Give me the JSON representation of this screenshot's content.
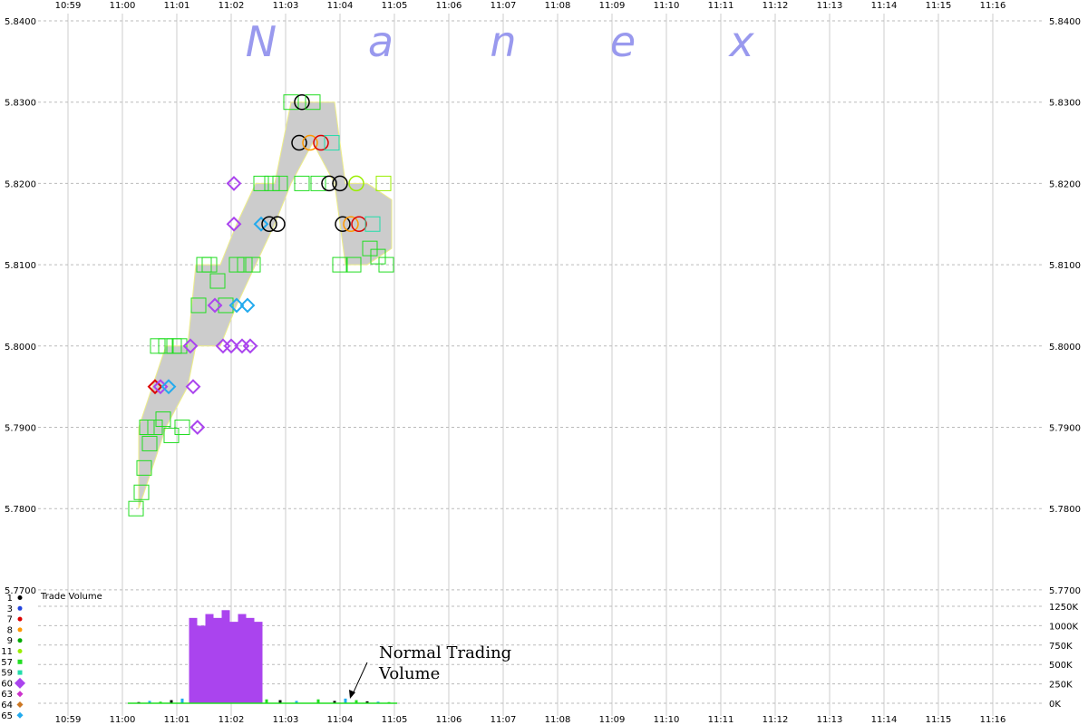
{
  "chart_data": {
    "type": "scatter",
    "watermark": [
      "N",
      "a",
      "n",
      "e",
      "x"
    ],
    "time_ticks": [
      "10:59",
      "11:00",
      "11:01",
      "11:02",
      "11:03",
      "11:04",
      "11:05",
      "11:06",
      "11:07",
      "11:08",
      "11:09",
      "11:10",
      "11:11",
      "11:12",
      "11:13",
      "11:14",
      "11:15",
      "11:16"
    ],
    "price_ticks": [
      "5.8400",
      "5.8300",
      "5.8200",
      "5.8100",
      "5.8000",
      "5.7900",
      "5.7800",
      "5.7700"
    ],
    "price_ylim": [
      5.77,
      5.84
    ],
    "xlim_minutes": [
      -1,
      16.3
    ],
    "volume_label": "Trade Volume",
    "volume_ticks": [
      "1250K",
      "1000K",
      "750K",
      "500K",
      "250K",
      "0K"
    ],
    "volume_ylim": [
      0,
      1250000
    ],
    "annotation": [
      "Normal Trading",
      "Volume"
    ],
    "legend": [
      {
        "code": "1",
        "color": "#000000",
        "shape": "dot"
      },
      {
        "code": "3",
        "color": "#2244dd",
        "shape": "dot"
      },
      {
        "code": "7",
        "color": "#dd0000",
        "shape": "dot"
      },
      {
        "code": "8",
        "color": "#ff9900",
        "shape": "dot"
      },
      {
        "code": "9",
        "color": "#00aa00",
        "shape": "dot"
      },
      {
        "code": "11",
        "color": "#99ee00",
        "shape": "dot"
      },
      {
        "code": "57",
        "color": "#22dd22",
        "shape": "square"
      },
      {
        "code": "59",
        "color": "#22ddaa",
        "shape": "square"
      },
      {
        "code": "60",
        "color": "#aa44ee",
        "shape": "diamond"
      },
      {
        "code": "63",
        "color": "#cc33cc",
        "shape": "diamond"
      },
      {
        "code": "64",
        "color": "#cc7722",
        "shape": "diamond"
      },
      {
        "code": "65",
        "color": "#22aaee",
        "shape": "diamond"
      }
    ],
    "price_band": [
      {
        "t": 0.3,
        "low": 5.78,
        "high": 5.79
      },
      {
        "t": 0.55,
        "low": 5.785,
        "high": 5.795
      },
      {
        "t": 0.8,
        "low": 5.79,
        "high": 5.8
      },
      {
        "t": 1.2,
        "low": 5.795,
        "high": 5.8
      },
      {
        "t": 1.35,
        "low": 5.8,
        "high": 5.81
      },
      {
        "t": 1.8,
        "low": 5.8,
        "high": 5.81
      },
      {
        "t": 2.1,
        "low": 5.805,
        "high": 5.815
      },
      {
        "t": 2.45,
        "low": 5.81,
        "high": 5.82
      },
      {
        "t": 2.8,
        "low": 5.815,
        "high": 5.82
      },
      {
        "t": 3.1,
        "low": 5.82,
        "high": 5.83
      },
      {
        "t": 3.5,
        "low": 5.825,
        "high": 5.83
      },
      {
        "t": 3.9,
        "low": 5.82,
        "high": 5.83
      },
      {
        "t": 4.1,
        "low": 5.81,
        "high": 5.82
      },
      {
        "t": 4.5,
        "low": 5.81,
        "high": 5.82
      },
      {
        "t": 4.95,
        "low": 5.812,
        "high": 5.818
      }
    ],
    "trades": [
      {
        "t": 0.25,
        "p": 5.78,
        "s": "square",
        "c": "#22dd22"
      },
      {
        "t": 0.35,
        "p": 5.782,
        "s": "square",
        "c": "#22dd22"
      },
      {
        "t": 0.4,
        "p": 5.785,
        "s": "square",
        "c": "#22dd22"
      },
      {
        "t": 0.5,
        "p": 5.788,
        "s": "square",
        "c": "#22dd22"
      },
      {
        "t": 0.45,
        "p": 5.79,
        "s": "square",
        "c": "#22dd22"
      },
      {
        "t": 0.6,
        "p": 5.79,
        "s": "square",
        "c": "#22dd22"
      },
      {
        "t": 0.75,
        "p": 5.791,
        "s": "square",
        "c": "#22dd22"
      },
      {
        "t": 0.9,
        "p": 5.789,
        "s": "square",
        "c": "#22dd22"
      },
      {
        "t": 1.1,
        "p": 5.79,
        "s": "square",
        "c": "#22dd22"
      },
      {
        "t": 0.65,
        "p": 5.8,
        "s": "square",
        "c": "#22dd22"
      },
      {
        "t": 0.8,
        "p": 5.8,
        "s": "square",
        "c": "#22dd22"
      },
      {
        "t": 0.95,
        "p": 5.8,
        "s": "square",
        "c": "#22dd22"
      },
      {
        "t": 1.05,
        "p": 5.8,
        "s": "square",
        "c": "#22dd22"
      },
      {
        "t": 0.6,
        "p": 5.795,
        "s": "diamond",
        "c": "#dd0000"
      },
      {
        "t": 0.7,
        "p": 5.795,
        "s": "diamond",
        "c": "#aa44ee"
      },
      {
        "t": 0.85,
        "p": 5.795,
        "s": "diamond",
        "c": "#22aaee"
      },
      {
        "t": 1.3,
        "p": 5.795,
        "s": "diamond",
        "c": "#aa44ee"
      },
      {
        "t": 1.38,
        "p": 5.79,
        "s": "diamond",
        "c": "#aa44ee"
      },
      {
        "t": 1.25,
        "p": 5.8,
        "s": "diamond",
        "c": "#aa44ee"
      },
      {
        "t": 1.4,
        "p": 5.805,
        "s": "square",
        "c": "#22dd22"
      },
      {
        "t": 1.5,
        "p": 5.81,
        "s": "square",
        "c": "#22dd22"
      },
      {
        "t": 1.6,
        "p": 5.81,
        "s": "square",
        "c": "#22dd22"
      },
      {
        "t": 1.75,
        "p": 5.808,
        "s": "square",
        "c": "#22dd22"
      },
      {
        "t": 1.9,
        "p": 5.805,
        "s": "square",
        "c": "#22dd22"
      },
      {
        "t": 1.7,
        "p": 5.805,
        "s": "diamond",
        "c": "#aa44ee"
      },
      {
        "t": 1.85,
        "p": 5.8,
        "s": "diamond",
        "c": "#aa44ee"
      },
      {
        "t": 2.0,
        "p": 5.8,
        "s": "diamond",
        "c": "#aa44ee"
      },
      {
        "t": 2.2,
        "p": 5.8,
        "s": "diamond",
        "c": "#aa44ee"
      },
      {
        "t": 2.35,
        "p": 5.8,
        "s": "diamond",
        "c": "#aa44ee"
      },
      {
        "t": 2.1,
        "p": 5.805,
        "s": "diamond",
        "c": "#22aaee"
      },
      {
        "t": 2.3,
        "p": 5.805,
        "s": "diamond",
        "c": "#22aaee"
      },
      {
        "t": 2.1,
        "p": 5.81,
        "s": "square",
        "c": "#22dd22"
      },
      {
        "t": 2.25,
        "p": 5.81,
        "s": "square",
        "c": "#22dd22"
      },
      {
        "t": 2.4,
        "p": 5.81,
        "s": "square",
        "c": "#22dd22"
      },
      {
        "t": 2.05,
        "p": 5.815,
        "s": "diamond",
        "c": "#aa44ee"
      },
      {
        "t": 2.05,
        "p": 5.82,
        "s": "diamond",
        "c": "#aa44ee"
      },
      {
        "t": 2.55,
        "p": 5.815,
        "s": "diamond",
        "c": "#22aaee"
      },
      {
        "t": 2.7,
        "p": 5.815,
        "s": "circle",
        "c": "#000000"
      },
      {
        "t": 2.85,
        "p": 5.815,
        "s": "circle",
        "c": "#000000"
      },
      {
        "t": 2.55,
        "p": 5.82,
        "s": "square",
        "c": "#22dd22"
      },
      {
        "t": 2.75,
        "p": 5.82,
        "s": "square",
        "c": "#22dd22"
      },
      {
        "t": 2.9,
        "p": 5.82,
        "s": "square",
        "c": "#22dd22"
      },
      {
        "t": 3.1,
        "p": 5.83,
        "s": "square",
        "c": "#22dd22"
      },
      {
        "t": 3.3,
        "p": 5.83,
        "s": "circle",
        "c": "#000000"
      },
      {
        "t": 3.5,
        "p": 5.83,
        "s": "square",
        "c": "#22dd22"
      },
      {
        "t": 3.25,
        "p": 5.825,
        "s": "circle",
        "c": "#000000"
      },
      {
        "t": 3.45,
        "p": 5.825,
        "s": "circle",
        "c": "#ff9900"
      },
      {
        "t": 3.65,
        "p": 5.825,
        "s": "circle",
        "c": "#dd0000"
      },
      {
        "t": 3.85,
        "p": 5.825,
        "s": "square",
        "c": "#22ddaa"
      },
      {
        "t": 3.3,
        "p": 5.82,
        "s": "square",
        "c": "#22dd22"
      },
      {
        "t": 3.6,
        "p": 5.82,
        "s": "square",
        "c": "#22dd22"
      },
      {
        "t": 3.8,
        "p": 5.82,
        "s": "circle",
        "c": "#000000"
      },
      {
        "t": 4.0,
        "p": 5.82,
        "s": "circle",
        "c": "#000000"
      },
      {
        "t": 4.3,
        "p": 5.82,
        "s": "circle",
        "c": "#99ee00"
      },
      {
        "t": 4.05,
        "p": 5.815,
        "s": "circle",
        "c": "#000000"
      },
      {
        "t": 4.2,
        "p": 5.815,
        "s": "circle",
        "c": "#ff9900"
      },
      {
        "t": 4.35,
        "p": 5.815,
        "s": "circle",
        "c": "#dd0000"
      },
      {
        "t": 4.6,
        "p": 5.815,
        "s": "square",
        "c": "#22ddaa"
      },
      {
        "t": 4.0,
        "p": 5.81,
        "s": "square",
        "c": "#22dd22"
      },
      {
        "t": 4.25,
        "p": 5.81,
        "s": "square",
        "c": "#22dd22"
      },
      {
        "t": 4.55,
        "p": 5.812,
        "s": "square",
        "c": "#22dd22"
      },
      {
        "t": 4.7,
        "p": 5.811,
        "s": "square",
        "c": "#22dd22"
      },
      {
        "t": 4.85,
        "p": 5.81,
        "s": "square",
        "c": "#22dd22"
      },
      {
        "t": 4.8,
        "p": 5.82,
        "s": "square",
        "c": "#99ee00"
      }
    ],
    "volume": [
      {
        "t": 0.3,
        "v": 15000
      },
      {
        "t": 0.5,
        "v": 30000
      },
      {
        "t": 0.7,
        "v": 20000
      },
      {
        "t": 0.9,
        "v": 40000
      },
      {
        "t": 1.1,
        "v": 60000
      },
      {
        "t": 1.3,
        "v": 1100000
      },
      {
        "t": 1.45,
        "v": 1000000
      },
      {
        "t": 1.6,
        "v": 1150000
      },
      {
        "t": 1.75,
        "v": 1100000
      },
      {
        "t": 1.9,
        "v": 1200000
      },
      {
        "t": 2.05,
        "v": 1050000
      },
      {
        "t": 2.2,
        "v": 1150000
      },
      {
        "t": 2.35,
        "v": 1100000
      },
      {
        "t": 2.5,
        "v": 1050000
      },
      {
        "t": 2.65,
        "v": 50000
      },
      {
        "t": 2.9,
        "v": 40000
      },
      {
        "t": 3.2,
        "v": 30000
      },
      {
        "t": 3.6,
        "v": 50000
      },
      {
        "t": 3.9,
        "v": 30000
      },
      {
        "t": 4.1,
        "v": 60000
      },
      {
        "t": 4.3,
        "v": 40000
      },
      {
        "t": 4.5,
        "v": 25000
      },
      {
        "t": 4.7,
        "v": 20000
      },
      {
        "t": 4.9,
        "v": 15000
      }
    ]
  }
}
